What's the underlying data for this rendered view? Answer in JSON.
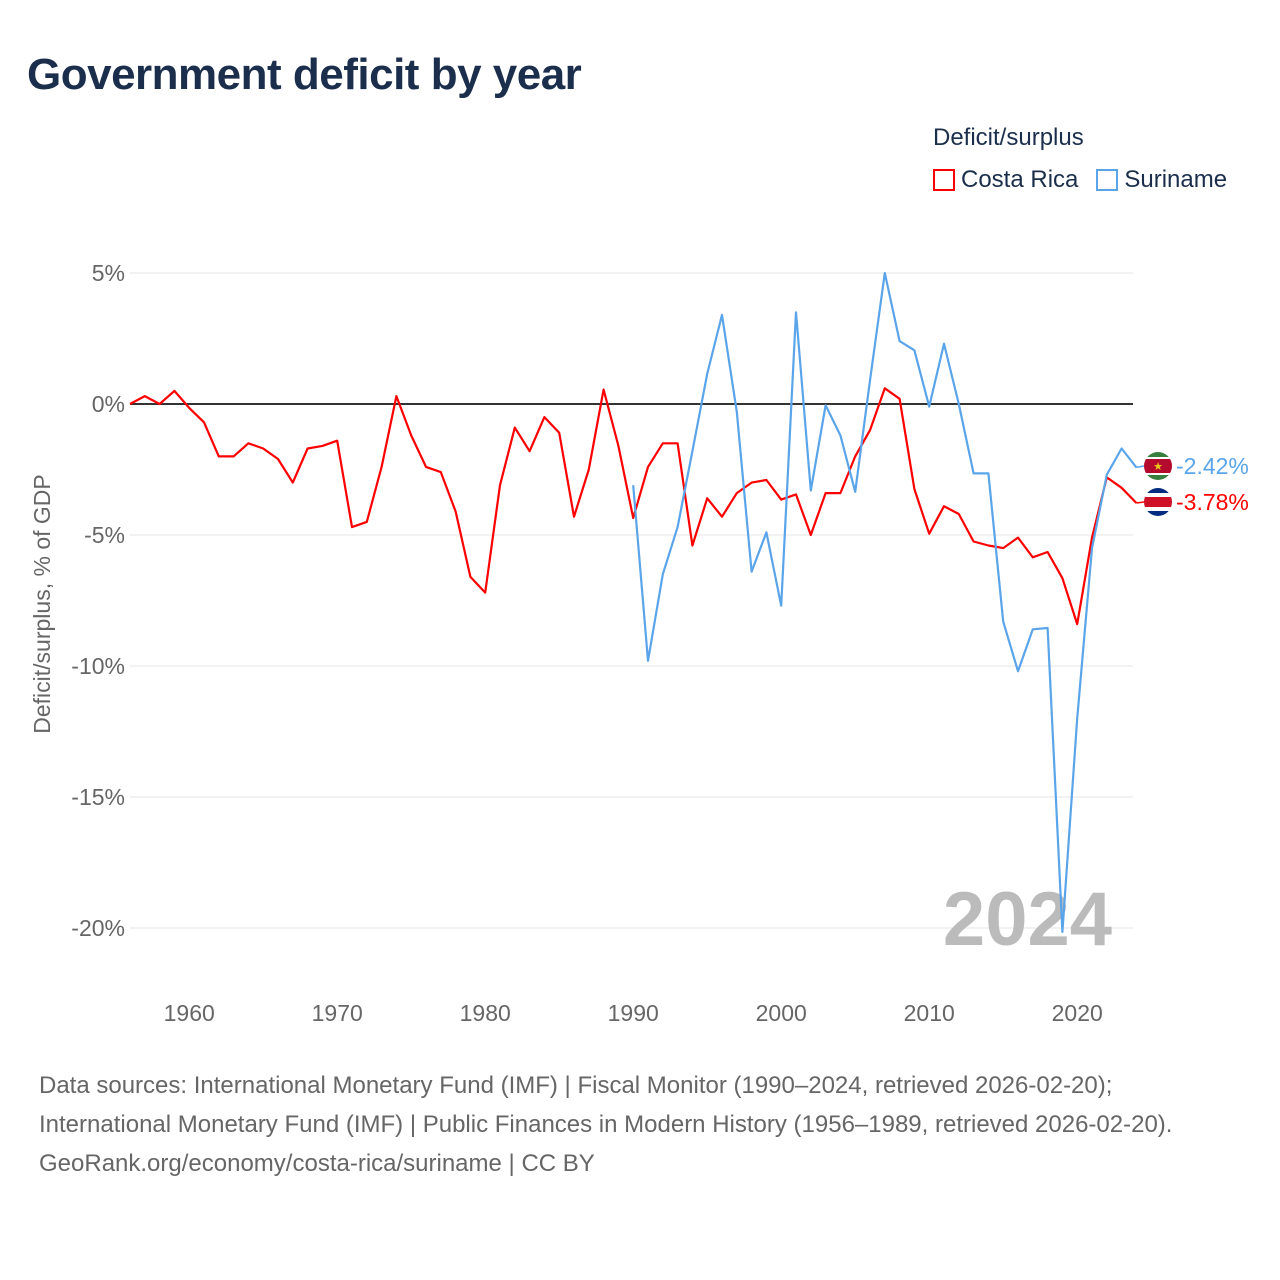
{
  "title": "Government deficit by year",
  "legend": {
    "title": "Deficit/surplus",
    "items": [
      {
        "label": "Costa Rica",
        "color": "#ff0000"
      },
      {
        "label": "Suriname",
        "color": "#5aa5ea"
      }
    ]
  },
  "chart_data": {
    "type": "line",
    "title": "Government deficit by year",
    "xlabel": "",
    "ylabel": "Deficit/surplus, % of GDP",
    "xlim": [
      1956,
      2024
    ],
    "ylim": [
      -21,
      5
    ],
    "xticks": [
      1960,
      1970,
      1980,
      1990,
      2000,
      2010,
      2020
    ],
    "yticks": [
      {
        "v": 5,
        "label": "5%"
      },
      {
        "v": 0,
        "label": "0%"
      },
      {
        "v": -5,
        "label": "-5%"
      },
      {
        "v": -10,
        "label": "-10%"
      },
      {
        "v": -15,
        "label": "-15%"
      },
      {
        "v": -20,
        "label": "-20%"
      }
    ],
    "grid": true,
    "year_watermark": "2024",
    "series": [
      {
        "name": "Costa Rica",
        "color": "#ff0000",
        "end_label": "-3.78%",
        "x_start": 1956,
        "values": [
          0.0,
          0.3,
          0.0,
          0.5,
          -0.15,
          -0.7,
          -2.0,
          -2.0,
          -1.5,
          -1.7,
          -2.1,
          -3.0,
          -1.7,
          -1.6,
          -1.4,
          -4.7,
          -4.5,
          -2.4,
          0.3,
          -1.2,
          -2.4,
          -2.6,
          -4.1,
          -6.6,
          -7.2,
          -3.1,
          -0.9,
          -1.8,
          -0.5,
          -1.1,
          -4.3,
          -2.5,
          0.55,
          -1.6,
          -4.35,
          -2.4,
          -1.5,
          -1.5,
          -5.4,
          -3.6,
          -4.3,
          -3.4,
          -3.0,
          -2.9,
          -3.65,
          -3.45,
          -5.0,
          -3.4,
          -3.4,
          -2.0,
          -1.0,
          0.6,
          0.2,
          -3.25,
          -4.95,
          -3.9,
          -4.2,
          -5.25,
          -5.4,
          -5.5,
          -5.1,
          -5.85,
          -5.65,
          -6.65,
          -8.4,
          -5.1,
          -2.8,
          -3.2,
          -3.78
        ]
      },
      {
        "name": "Suriname",
        "color": "#5aa5ea",
        "end_label": "-2.42%",
        "x_start": 1990,
        "values": [
          -3.1,
          -9.8,
          -6.5,
          -4.7,
          -1.8,
          1.15,
          3.4,
          -0.3,
          -6.4,
          -4.9,
          -7.7,
          3.5,
          -3.3,
          -0.05,
          -1.2,
          -3.35,
          0.9,
          5.0,
          2.4,
          2.05,
          -0.1,
          2.3,
          0.0,
          -2.65,
          -2.65,
          -8.3,
          -10.2,
          -8.6,
          -8.55,
          -20.15,
          -12.0,
          -5.5,
          -2.7,
          -1.7,
          -2.42
        ]
      }
    ]
  },
  "footer": {
    "sources": "Data sources: International Monetary Fund (IMF) | Fiscal Monitor (1990–2024, retrieved 2026-02-20); International Monetary Fund (IMF) | Public Finances in Modern History (1956–1989, retrieved 2026-02-20).",
    "credit": "GeoRank.org/economy/costa-rica/suriname | CC BY"
  }
}
